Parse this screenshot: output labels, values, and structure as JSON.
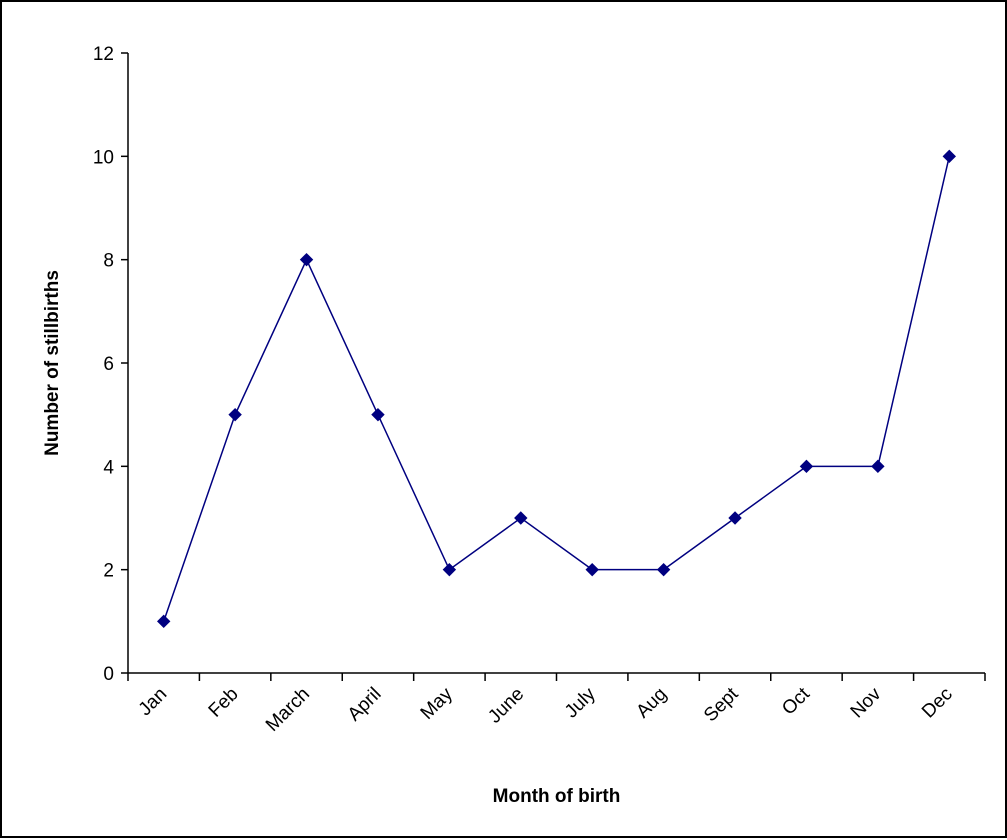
{
  "chart_data": {
    "type": "line",
    "title": "",
    "xlabel": "Month of birth",
    "ylabel": "Number of stillbirths",
    "categories": [
      "Jan",
      "Feb",
      "March",
      "April",
      "May",
      "June",
      "July",
      "Aug",
      "Sept",
      "Oct",
      "Nov",
      "Dec"
    ],
    "series": [
      {
        "values": [
          1,
          5,
          8,
          5,
          2,
          3,
          2,
          2,
          3,
          4,
          4,
          10
        ]
      }
    ],
    "ylim": [
      0,
      12
    ],
    "yticks": [
      "0",
      "2",
      "4",
      "6",
      "8",
      "10",
      "12"
    ],
    "grid": false,
    "legend": "none",
    "line_color": "#000080",
    "marker": "diamond"
  }
}
